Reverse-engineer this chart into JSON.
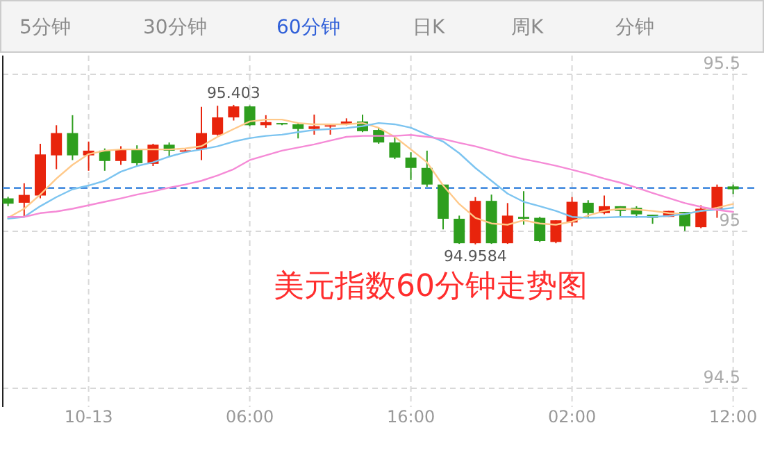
{
  "chart_data": {
    "type": "candlestick",
    "title": "美元指数60分钟走势图",
    "categories": [
      null,
      null,
      null,
      null,
      null,
      "10-13",
      null,
      null,
      null,
      null,
      null,
      null,
      null,
      null,
      null,
      "06:00",
      null,
      null,
      null,
      null,
      null,
      null,
      null,
      null,
      null,
      "16:00",
      null,
      null,
      null,
      null,
      null,
      null,
      null,
      null,
      null,
      "02:00",
      null,
      null,
      null,
      null,
      null,
      null,
      null,
      null,
      null,
      "12:00"
    ],
    "ohlc": [
      [
        95.105,
        95.11,
        95.08,
        95.088
      ],
      [
        95.091,
        95.153,
        95.046,
        95.116
      ],
      [
        95.114,
        95.279,
        95.105,
        95.245
      ],
      [
        95.242,
        95.338,
        95.198,
        95.313
      ],
      [
        95.313,
        95.37,
        95.227,
        95.242
      ],
      [
        95.242,
        95.286,
        95.193,
        95.257
      ],
      [
        95.257,
        95.264,
        95.193,
        95.224
      ],
      [
        95.224,
        95.271,
        95.212,
        95.261
      ],
      [
        95.261,
        95.274,
        95.208,
        95.217
      ],
      [
        95.215,
        95.279,
        95.208,
        95.276
      ],
      [
        95.276,
        95.283,
        95.239,
        95.257
      ],
      [
        95.254,
        95.261,
        95.252,
        95.258
      ],
      [
        95.261,
        95.397,
        95.227,
        95.313
      ],
      [
        95.308,
        95.4,
        95.305,
        95.363
      ],
      [
        95.363,
        95.403,
        95.353,
        95.398
      ],
      [
        95.398,
        95.401,
        95.335,
        95.338
      ],
      [
        95.338,
        95.37,
        95.33,
        95.348
      ],
      [
        95.345,
        95.345,
        95.338,
        95.341
      ],
      [
        95.341,
        95.345,
        95.296,
        95.326
      ],
      [
        95.326,
        95.372,
        95.308,
        95.335
      ],
      [
        95.335,
        95.341,
        95.308,
        95.338
      ],
      [
        95.341,
        95.36,
        95.338,
        95.35
      ],
      [
        95.35,
        95.372,
        95.316,
        95.319
      ],
      [
        95.323,
        95.33,
        95.279,
        95.283
      ],
      [
        95.283,
        95.301,
        95.23,
        95.235
      ],
      [
        95.235,
        95.252,
        95.164,
        95.202
      ],
      [
        95.202,
        95.257,
        95.142,
        95.149
      ],
      [
        95.149,
        95.149,
        95.006,
        95.04
      ],
      [
        95.04,
        95.05,
        94.96,
        94.962
      ],
      [
        94.962,
        95.109,
        94.9584,
        95.097
      ],
      [
        95.097,
        95.117,
        94.96,
        94.962
      ],
      [
        94.962,
        95.09,
        94.96,
        95.05
      ],
      [
        95.046,
        95.128,
        95.021,
        95.04
      ],
      [
        95.043,
        95.046,
        94.966,
        94.969
      ],
      [
        94.966,
        95.035,
        94.962,
        95.035
      ],
      [
        95.028,
        95.109,
        95.016,
        95.094
      ],
      [
        95.091,
        95.099,
        95.043,
        95.058
      ],
      [
        95.058,
        95.114,
        95.054,
        95.08
      ],
      [
        95.08,
        95.08,
        95.046,
        95.065
      ],
      [
        95.075,
        95.08,
        95.043,
        95.054
      ],
      [
        95.053,
        95.053,
        95.024,
        95.043
      ],
      [
        95.046,
        95.065,
        95.046,
        95.065
      ],
      [
        95.062,
        95.062,
        95.001,
        95.016
      ],
      [
        95.013,
        95.083,
        95.01,
        95.072
      ],
      [
        95.072,
        95.149,
        95.043,
        95.142
      ],
      [
        95.143,
        95.149,
        95.119,
        95.134
      ]
    ],
    "colors": [
      "#2e9e1e",
      "#e8240c",
      "#e8240c",
      "#e8240c",
      "#2e9e1e",
      "#e8240c",
      "#2e9e1e",
      "#e8240c",
      "#2e9e1e",
      "#e8240c",
      "#2e9e1e",
      "#e8240c",
      "#e8240c",
      "#e8240c",
      "#e8240c",
      "#2e9e1e",
      "#e8240c",
      "#2e9e1e",
      "#2e9e1e",
      "#e8240c",
      "#e8240c",
      "#e8240c",
      "#2e9e1e",
      "#2e9e1e",
      "#2e9e1e",
      "#2e9e1e",
      "#2e9e1e",
      "#2e9e1e",
      "#2e9e1e",
      "#e8240c",
      "#2e9e1e",
      "#e8240c",
      "#2e9e1e",
      "#2e9e1e",
      "#e8240c",
      "#e8240c",
      "#2e9e1e",
      "#e8240c",
      "#2e9e1e",
      "#2e9e1e",
      "#2e9e1e",
      "#e8240c",
      "#2e9e1e",
      "#e8240c",
      "#e8240c",
      "#2e9e1e"
    ],
    "series": [
      {
        "type": "line",
        "color": "#ffc98a",
        "values": [
          95.043,
          95.072,
          95.117,
          95.168,
          95.212,
          95.246,
          95.257,
          95.261,
          95.261,
          95.261,
          95.261,
          95.264,
          95.271,
          95.301,
          95.326,
          95.35,
          95.356,
          95.356,
          95.345,
          95.341,
          95.341,
          95.341,
          95.345,
          95.33,
          95.301,
          95.261,
          95.22,
          95.146,
          95.087,
          95.043,
          95.025,
          95.021,
          95.035,
          95.025,
          95.021,
          95.031,
          95.05,
          95.065,
          95.072,
          95.069,
          95.065,
          95.058,
          95.055,
          95.065,
          95.075,
          95.087
        ]
      },
      {
        "type": "line",
        "color": "#7cc4f0",
        "values": [
          95.04,
          95.046,
          95.08,
          95.109,
          95.134,
          95.146,
          95.161,
          95.19,
          95.208,
          95.22,
          95.238,
          95.252,
          95.261,
          95.271,
          95.286,
          95.297,
          95.304,
          95.308,
          95.316,
          95.323,
          95.326,
          95.329,
          95.335,
          95.345,
          95.341,
          95.33,
          95.308,
          95.286,
          95.249,
          95.202,
          95.161,
          95.12,
          95.094,
          95.08,
          95.065,
          95.046,
          95.043,
          95.044,
          95.046,
          95.046,
          95.046,
          95.049,
          95.055,
          95.065,
          95.069,
          95.075
        ]
      },
      {
        "type": "line",
        "color": "#f58ad6",
        "values": [
          95.046,
          95.046,
          95.058,
          95.063,
          95.072,
          95.083,
          95.094,
          95.105,
          95.117,
          95.127,
          95.139,
          95.149,
          95.161,
          95.178,
          95.198,
          95.227,
          95.242,
          95.257,
          95.267,
          95.277,
          95.289,
          95.301,
          95.304,
          95.304,
          95.304,
          95.307,
          95.301,
          95.294,
          95.282,
          95.271,
          95.257,
          95.242,
          95.23,
          95.22,
          95.209,
          95.196,
          95.183,
          95.168,
          95.155,
          95.139,
          95.122,
          95.106,
          95.09,
          95.078,
          95.068,
          95.062
        ]
      }
    ],
    "ylim": [
      94.44,
      95.56
    ],
    "yticks": [
      95.5,
      95,
      94.5
    ],
    "grid": true,
    "ref_lines": [
      {
        "axis": "y",
        "value": 95.138,
        "color": "#4a8fe0",
        "line_style": "dashed"
      }
    ],
    "annotations": [
      "5分钟",
      "30分钟",
      "60分钟",
      "日K",
      "周K",
      "分钟",
      {
        "text": "95.403",
        "y": 95.403
      },
      {
        "text": "94.9584",
        "y": 94.9584
      }
    ]
  }
}
